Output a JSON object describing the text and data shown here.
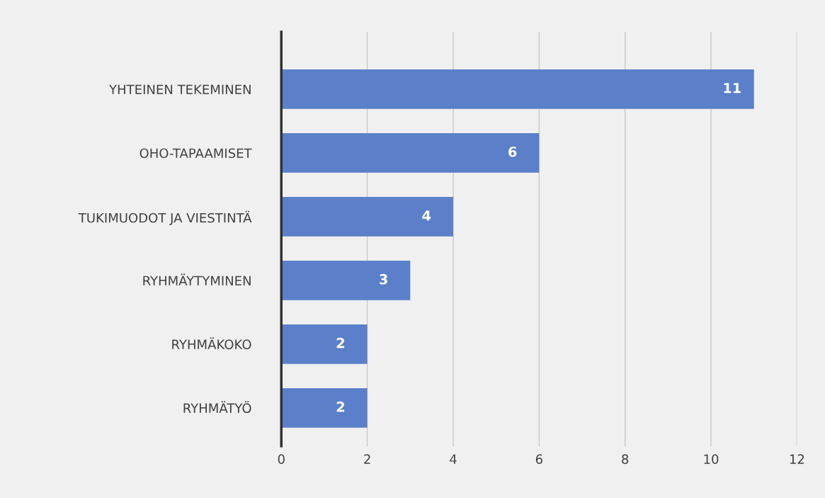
{
  "chart_data": {
    "type": "bar",
    "orientation": "horizontal",
    "categories": [
      "YHTEINEN TEKEMINEN",
      "OHO-TAPAAMISET",
      "TUKIMUODOT JA VIESTINTÄ",
      "RYHMÄYTYMINEN",
      "RYHMÄKOKO",
      "RYHMÄTYÖ"
    ],
    "values": [
      11,
      6,
      4,
      3,
      2,
      2
    ],
    "color": "#5b80c9",
    "xlim": [
      0,
      12
    ],
    "xticks": [
      0,
      2,
      4,
      6,
      8,
      10,
      12
    ],
    "grid": "x",
    "data_labels": true
  }
}
